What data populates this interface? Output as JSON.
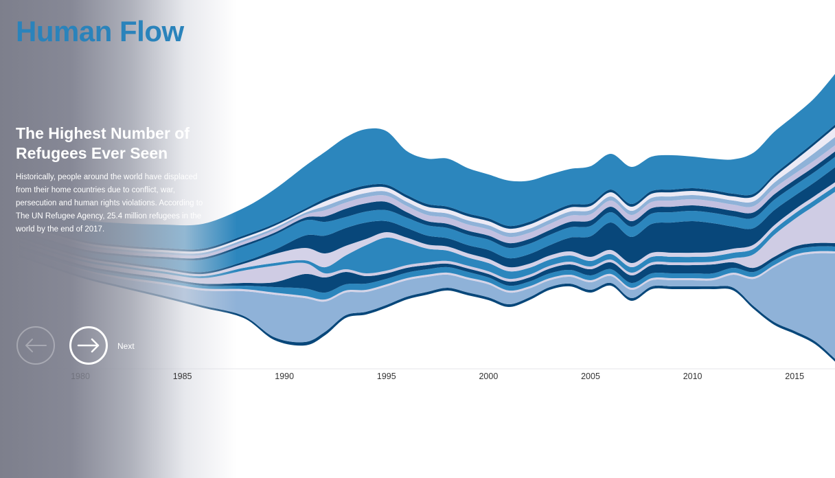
{
  "header": {
    "title": "Human Flow"
  },
  "slide": {
    "heading": "The Highest Number of Refugees Ever Seen",
    "body": "Historically, people around the world have displaced from their home countries due to conflict, war, persecution and human rights violations. According to The UN Refugee Agency, 25.4 million refugees in the world by the end of 2017."
  },
  "nav": {
    "prev_icon": "arrow-left-icon",
    "next_icon": "arrow-right-icon",
    "next_label": "Next"
  },
  "chart_data": {
    "type": "area",
    "layout": "streamgraph",
    "x_ticks": [
      "1980",
      "1985",
      "1990",
      "1995",
      "2000",
      "2005",
      "2010",
      "2015"
    ],
    "xlim": [
      1980,
      2017
    ],
    "x": [
      1977,
      1980,
      1982,
      1984,
      1986,
      1988,
      1989.5,
      1991,
      1992,
      1993,
      1994,
      1995,
      1996,
      1997,
      1998,
      1999,
      2000,
      2001,
      2002,
      2003,
      2004,
      2005,
      2006,
      2007,
      2008,
      2009,
      2010,
      2011,
      2012,
      2013,
      2014,
      2015,
      2016,
      2017
    ],
    "baseline": [
      374,
      404,
      419,
      433,
      448,
      463,
      495,
      503,
      488,
      463,
      458,
      448,
      436,
      429,
      423,
      430,
      437,
      447,
      437,
      422,
      417,
      426,
      416,
      438,
      421,
      421,
      421,
      421,
      423,
      450,
      473,
      486,
      501,
      527
    ],
    "series": [
      {
        "color": "#08477a",
        "values": [
          3,
          3,
          3,
          3,
          3,
          3,
          4,
          5,
          5,
          4,
          4,
          4,
          4,
          4,
          4,
          4,
          4,
          4,
          4,
          4,
          4,
          4,
          4,
          4,
          4,
          4,
          4,
          4,
          4,
          4,
          4,
          4,
          4,
          4
        ]
      },
      {
        "color": "#8fb2d8",
        "values": [
          6,
          8,
          10,
          16,
          22,
          36,
          62,
          64,
          44,
          33,
          29,
          27,
          24,
          22,
          19,
          19,
          19,
          17,
          13,
          10,
          10,
          11,
          10,
          12,
          9,
          9,
          9,
          9,
          19,
          40,
          80,
          108,
          128,
          154
        ]
      },
      {
        "color": "#d5d4e8",
        "values": [
          2,
          2,
          3,
          3,
          3,
          3,
          3,
          3,
          3,
          3,
          3,
          3,
          3,
          3,
          3,
          3,
          3,
          3,
          3,
          3,
          3,
          3,
          3,
          3,
          3,
          3,
          3,
          3,
          3,
          3,
          3,
          3,
          3,
          3
        ]
      },
      {
        "color": "#2c86bd",
        "values": [
          3,
          3,
          4,
          4,
          4,
          5,
          8,
          11,
          10,
          9,
          9,
          8,
          8,
          8,
          8,
          8,
          7,
          7,
          7,
          7,
          7,
          7,
          7,
          7,
          7,
          7,
          7,
          7,
          7,
          7,
          7,
          7,
          7,
          7
        ]
      },
      {
        "color": "#08477a",
        "values": [
          3,
          3,
          3,
          3,
          3,
          4,
          7,
          21,
          22,
          18,
          11,
          8,
          7,
          6,
          5,
          5,
          5,
          6,
          6,
          7,
          8,
          9,
          10,
          11,
          12,
          12,
          12,
          13,
          8,
          6,
          5,
          5,
          5,
          5
        ]
      },
      {
        "color": "#cfcce4",
        "values": [
          4,
          5,
          6,
          6,
          8,
          18,
          24,
          16,
          6,
          4,
          4,
          4,
          4,
          4,
          4,
          4,
          4,
          4,
          4,
          4,
          4,
          4,
          4,
          4,
          4,
          4,
          4,
          4,
          6,
          20,
          32,
          40,
          55,
          75
        ]
      },
      {
        "color": "#2c86bd",
        "values": [
          3,
          3,
          3,
          3,
          3,
          4,
          4,
          4,
          9,
          20,
          41,
          48,
          33,
          20,
          15,
          12,
          12,
          11,
          10,
          9,
          9,
          8,
          8,
          8,
          8,
          8,
          8,
          8,
          8,
          8,
          8,
          8,
          8,
          8
        ]
      },
      {
        "color": "#d4d2e8",
        "values": [
          3,
          3,
          3,
          3,
          3,
          6,
          13,
          18,
          20,
          14,
          9,
          8,
          7,
          6,
          6,
          6,
          6,
          6,
          6,
          6,
          6,
          6,
          6,
          6,
          6,
          6,
          6,
          6,
          6,
          6,
          6,
          6,
          6,
          6
        ]
      },
      {
        "color": "#08477a",
        "values": [
          3,
          3,
          3,
          3,
          3,
          3,
          6,
          18,
          26,
          26,
          24,
          16,
          14,
          13,
          12,
          12,
          13,
          13,
          14,
          15,
          20,
          30,
          40,
          38,
          42,
          44,
          46,
          42,
          32,
          24,
          22,
          20,
          20,
          22
        ]
      },
      {
        "color": "#2c86bd",
        "values": [
          6,
          6,
          8,
          12,
          18,
          22,
          22,
          22,
          20,
          16,
          16,
          16,
          15,
          15,
          15,
          15,
          15,
          15,
          15,
          15,
          15,
          15,
          15,
          15,
          15,
          15,
          15,
          15,
          15,
          15,
          15,
          15,
          15,
          15
        ]
      },
      {
        "color": "#08477a",
        "values": [
          3,
          3,
          3,
          3,
          3,
          3,
          3,
          4,
          8,
          12,
          12,
          12,
          8,
          6,
          6,
          6,
          6,
          7,
          7,
          7,
          8,
          8,
          8,
          8,
          8,
          8,
          8,
          8,
          8,
          8,
          8,
          8,
          8,
          8
        ]
      },
      {
        "color": "#c2c0e0",
        "values": [
          4,
          4,
          4,
          4,
          4,
          4,
          4,
          4,
          9,
          9,
          9,
          9,
          9,
          9,
          9,
          9,
          9,
          9,
          9,
          9,
          9,
          9,
          9,
          9,
          9,
          9,
          9,
          9,
          9,
          9,
          9,
          9,
          9,
          9
        ]
      },
      {
        "color": "#8fb2d8",
        "values": [
          3,
          3,
          3,
          3,
          3,
          3,
          3,
          3,
          6,
          6,
          6,
          6,
          6,
          6,
          6,
          6,
          6,
          6,
          6,
          6,
          6,
          6,
          6,
          6,
          6,
          6,
          6,
          6,
          6,
          7,
          8,
          9,
          11,
          12
        ]
      },
      {
        "color": "#eceaf5",
        "values": [
          3,
          3,
          3,
          3,
          3,
          3,
          3,
          3,
          7,
          7,
          7,
          6,
          6,
          6,
          6,
          6,
          6,
          6,
          6,
          6,
          6,
          6,
          6,
          6,
          6,
          6,
          6,
          6,
          6,
          7,
          8,
          10,
          12,
          14
        ]
      },
      {
        "color": "#08477a",
        "values": [
          3,
          3,
          3,
          3,
          3,
          3,
          3,
          3,
          4,
          4,
          4,
          4,
          4,
          4,
          4,
          4,
          4,
          4,
          4,
          4,
          4,
          4,
          4,
          4,
          4,
          4,
          4,
          4,
          4,
          4,
          4,
          4,
          4,
          4
        ]
      },
      {
        "color": "#2c86bd",
        "values": [
          28,
          30,
          32,
          34,
          36,
          40,
          50,
          62,
          68,
          78,
          82,
          78,
          64,
          66,
          70,
          66,
          64,
          66,
          60,
          56,
          52,
          54,
          52,
          54,
          50,
          50,
          46,
          46,
          50,
          60,
          62,
          62,
          64,
          74
        ]
      }
    ]
  }
}
